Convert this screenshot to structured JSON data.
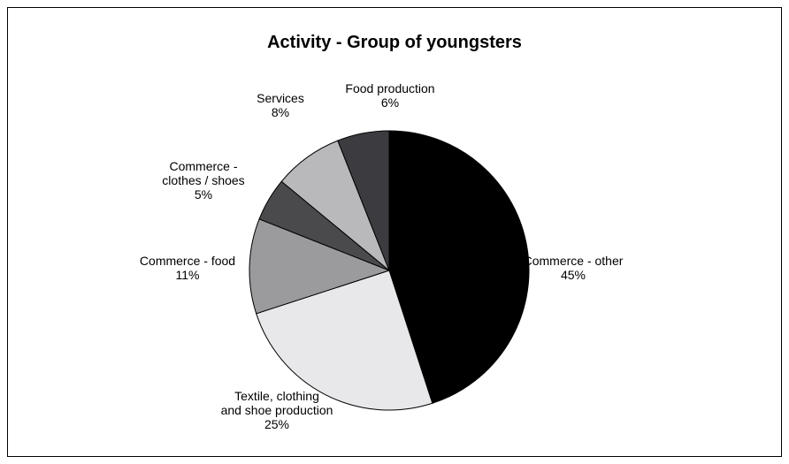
{
  "chart_data": {
    "type": "pie",
    "title": "Activity - Group of youngsters",
    "slices": [
      {
        "label_lines": [
          "Commerce - other"
        ],
        "percent_label": "45%",
        "value": 45,
        "color": "#000000"
      },
      {
        "label_lines": [
          "Textile, clothing",
          "and shoe production"
        ],
        "percent_label": "25%",
        "value": 25,
        "color": "#e8e8ea"
      },
      {
        "label_lines": [
          "Commerce - food"
        ],
        "percent_label": "11%",
        "value": 11,
        "color": "#9b9b9e"
      },
      {
        "label_lines": [
          "Commerce -",
          "clothes / shoes"
        ],
        "percent_label": "5%",
        "value": 5,
        "color": "#4a4a4d"
      },
      {
        "label_lines": [
          "Services"
        ],
        "percent_label": "8%",
        "value": 8,
        "color": "#b9b9bc"
      },
      {
        "label_lines": [
          "Food production"
        ],
        "percent_label": "6%",
        "value": 6,
        "color": "#3c3b3f"
      }
    ],
    "start": "top",
    "direction": "clockwise",
    "legend": "none"
  }
}
